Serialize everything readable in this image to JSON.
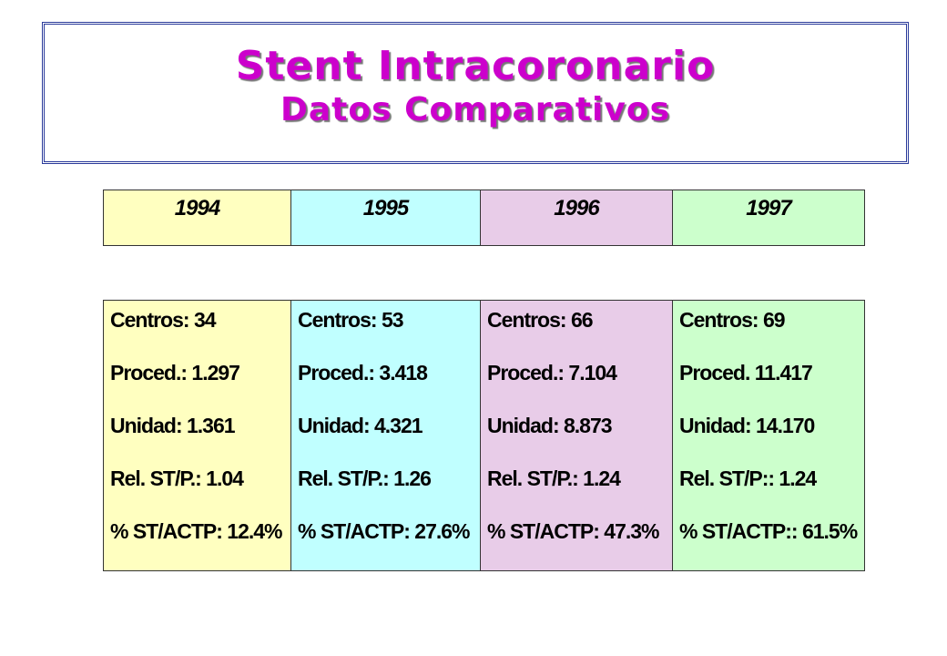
{
  "header": {
    "title": "Stent Intracoronario",
    "subtitle": "Datos Comparativos"
  },
  "columns": [
    {
      "year": "1994",
      "lines": [
        "Centros: 34",
        "Proced.: 1.297",
        "Unidad: 1.361",
        "Rel. ST/P.: 1.04",
        "% ST/ACTP: 12.4%"
      ]
    },
    {
      "year": "1995",
      "lines": [
        "Centros: 53",
        "Proced.: 3.418",
        "Unidad: 4.321",
        "Rel. ST/P.: 1.26",
        "% ST/ACTP: 27.6%"
      ]
    },
    {
      "year": "1996",
      "lines": [
        "Centros: 66",
        "Proced.: 7.104",
        "Unidad: 8.873",
        "Rel. ST/P.: 1.24",
        "% ST/ACTP: 47.3%"
      ]
    },
    {
      "year": "1997",
      "lines": [
        "Centros: 69",
        "Proced. 11.417",
        "Unidad: 14.170",
        "Rel. ST/P:: 1.24",
        "% ST/ACTP:: 61.5%"
      ]
    }
  ]
}
